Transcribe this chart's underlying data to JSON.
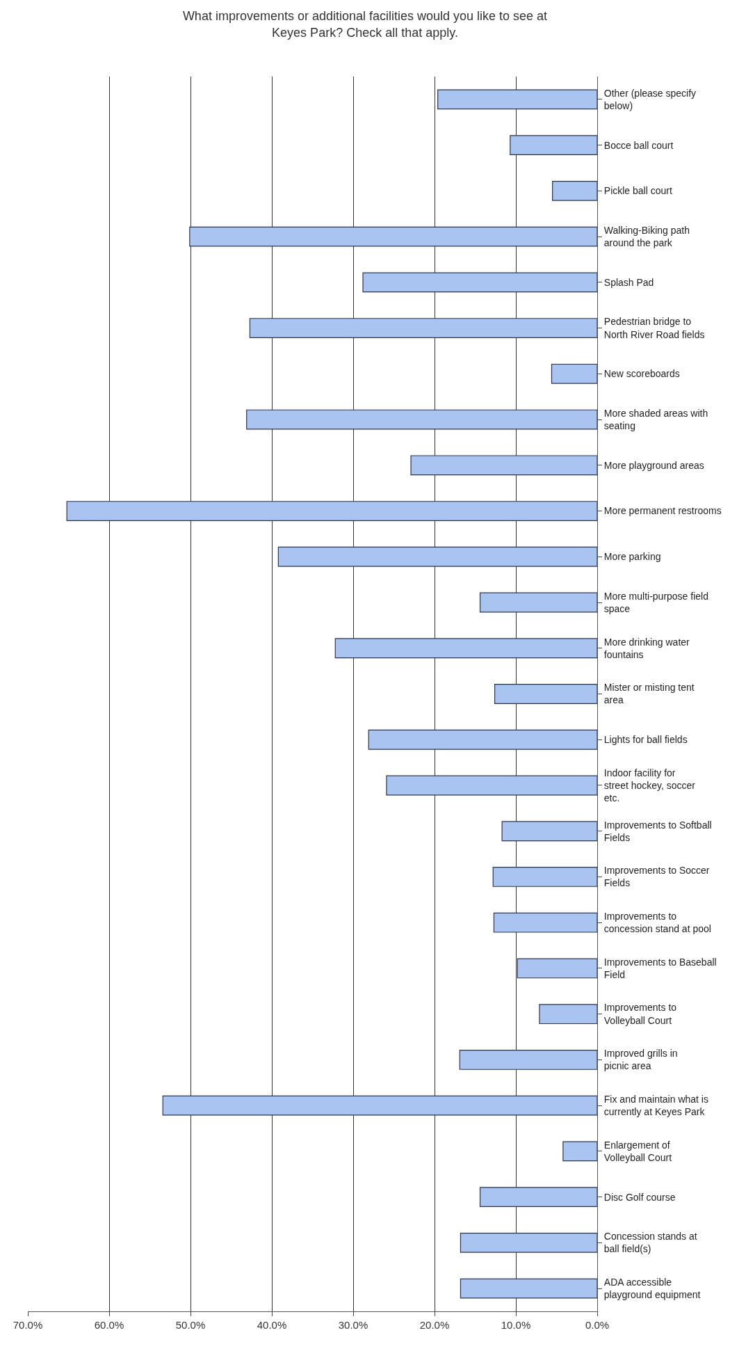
{
  "chart_data": {
    "type": "bar",
    "orientation": "horizontal",
    "title": "What improvements or additional facilities would you like to see at Keyes Park? Check all that apply.",
    "categories": [
      "Other (please specify below)",
      "Bocce ball court",
      "Pickle ball court",
      "Walking-Biking path around the park",
      "Splash Pad",
      "Pedestrian bridge to North River Road fields",
      "New scoreboards",
      "More shaded areas with seating",
      "More playground areas",
      "More permanent restrooms",
      "More parking",
      "More multi-purpose field space",
      "More drinking water fountains",
      "Mister or misting tent area",
      "Lights for ball fields",
      "Indoor facility for street hockey, soccer etc.",
      "Improvements to Softball Fields",
      "Improvements to Soccer Fields",
      "Improvements to concession stand at pool",
      "Improvements to Baseball Field",
      "Improvements to Volleyball Court",
      "Improved grills in picnic area",
      "Fix and maintain what is currently at Keyes Park",
      "Enlargement of Volleyball Court",
      "Disc Golf course",
      "Concession stands at ball field(s)",
      "ADA accessible playground equipment"
    ],
    "values": [
      19.6,
      10.7,
      5.5,
      50.1,
      28.8,
      42.7,
      5.6,
      43.1,
      22.9,
      65.2,
      39.2,
      14.4,
      32.2,
      12.6,
      28.1,
      25.9,
      11.7,
      12.8,
      12.7,
      9.8,
      7.1,
      16.9,
      53.4,
      4.2,
      14.4,
      16.8,
      16.8
    ],
    "color": "#a9c4f0",
    "xlim": [
      70,
      0
    ],
    "xticks": [
      {
        "value": 70,
        "label": "70.0%"
      },
      {
        "value": 60,
        "label": "60.0%"
      },
      {
        "value": 50,
        "label": "50.0%"
      },
      {
        "value": 40,
        "label": "40.0%"
      },
      {
        "value": 30,
        "label": "30.0%"
      },
      {
        "value": 20,
        "label": "20.0%"
      },
      {
        "value": 10,
        "label": "10.0%"
      },
      {
        "value": 0,
        "label": "0.0%"
      }
    ],
    "grid": "x"
  }
}
